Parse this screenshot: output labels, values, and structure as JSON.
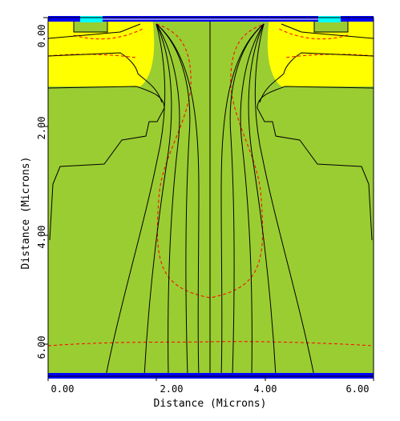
{
  "figure": {
    "x_axis_title": "Distance (Microns)",
    "y_axis_title": "Distance (Microns)",
    "x_ticks": [
      "0.00",
      "2.00",
      "4.00",
      "6.00"
    ],
    "y_ticks": [
      "0.00",
      "2.00",
      "4.00",
      "6.00"
    ],
    "x_range": [
      0,
      6
    ],
    "y_range": [
      0,
      6.6
    ]
  },
  "colors": {
    "substrate": "#9acd32",
    "doped_region": "#ffff00",
    "electrode": "#0000ff",
    "contact_pad": "#00ffff",
    "contour_line": "#000000",
    "junction_line": "#ff0000"
  }
}
